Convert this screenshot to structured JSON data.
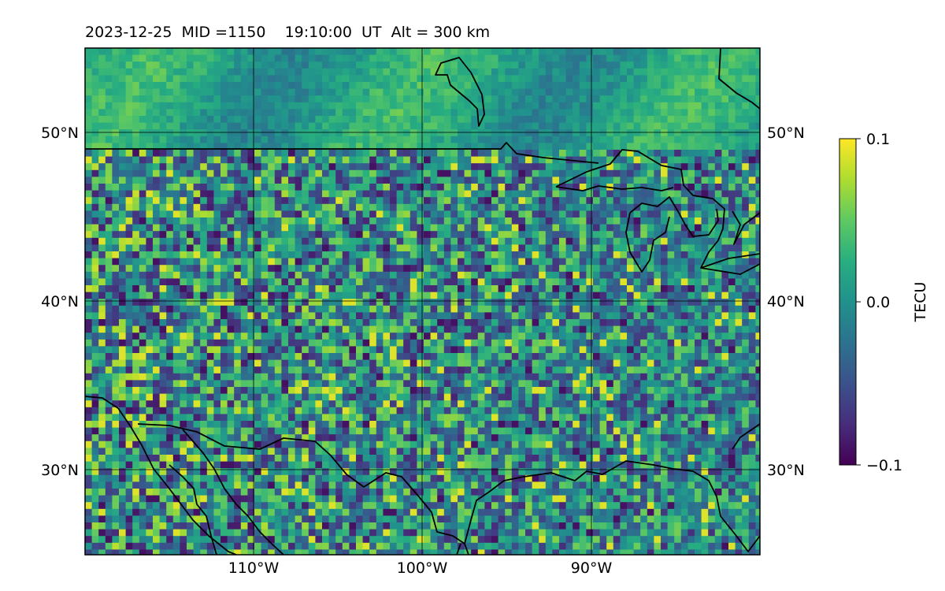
{
  "header": {
    "title": "2023-12-25  MID =1150    19:10:00  UT  Alt = 300 km"
  },
  "map": {
    "lon_range": [
      -120,
      -80
    ],
    "lat_range": [
      25,
      55
    ],
    "lat_ticks": [
      {
        "value": 30,
        "label": "30°N"
      },
      {
        "value": 40,
        "label": "40°N"
      },
      {
        "value": 50,
        "label": "50°N"
      }
    ],
    "lon_ticks": [
      {
        "value": -110,
        "label": "110°W"
      },
      {
        "value": -100,
        "label": "100°W"
      },
      {
        "value": -90,
        "label": "90°W"
      }
    ],
    "field": "TEC perturbation (random-looking gridded noise, higher amplitude over central US)"
  },
  "colorbar": {
    "label": "TECU",
    "colormap": "viridis",
    "min": -0.1,
    "max": 0.1,
    "ticks": [
      {
        "value": 0.1,
        "label": "0.1"
      },
      {
        "value": 0.0,
        "label": "0.0"
      },
      {
        "value": -0.1,
        "label": "−0.1"
      }
    ]
  },
  "chart_data": {
    "type": "heatmap",
    "title": "2023-12-25  MID =1150    19:10:00  UT  Alt = 300 km",
    "xlabel": "",
    "ylabel": "",
    "xlim": [
      -120,
      -80
    ],
    "ylim": [
      25,
      55
    ],
    "colorbar_label": "TECU",
    "clim": [
      -0.1,
      0.1
    ],
    "grid": true
  }
}
